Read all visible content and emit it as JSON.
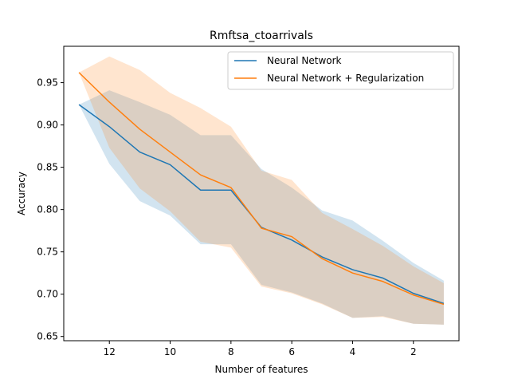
{
  "chart_data": {
    "type": "line",
    "title": "Rmftsa_ctoarrivals",
    "xlabel": "Number of features",
    "ylabel": "Accuracy",
    "x": [
      13,
      12,
      11,
      10,
      9,
      8,
      7,
      6,
      5,
      4,
      3,
      2,
      1
    ],
    "xlim": [
      13.5,
      0.5
    ],
    "ylim": [
      0.645,
      0.993
    ],
    "xticks": [
      12,
      10,
      8,
      6,
      4,
      2
    ],
    "yticks": [
      0.65,
      0.7,
      0.75,
      0.8,
      0.85,
      0.9,
      0.95
    ],
    "ytick_labels": [
      "0.65",
      "0.70",
      "0.75",
      "0.80",
      "0.85",
      "0.90",
      "0.95"
    ],
    "grid": false,
    "legend_position": "top-right",
    "series": [
      {
        "name": "Neural Network",
        "color": "#1f77b4",
        "values": [
          0.924,
          0.898,
          0.868,
          0.853,
          0.823,
          0.823,
          0.779,
          0.764,
          0.744,
          0.729,
          0.719,
          0.701,
          0.689
        ],
        "upper": [
          0.924,
          0.941,
          0.927,
          0.912,
          0.888,
          0.888,
          0.848,
          0.826,
          0.799,
          0.787,
          0.763,
          0.737,
          0.716
        ],
        "lower": [
          0.924,
          0.854,
          0.81,
          0.793,
          0.759,
          0.759,
          0.711,
          0.702,
          0.689,
          0.672,
          0.674,
          0.665,
          0.664
        ]
      },
      {
        "name": "Neural Network + Regularization",
        "color": "#ff7f0e",
        "values": [
          0.962,
          0.927,
          0.895,
          0.868,
          0.841,
          0.826,
          0.778,
          0.768,
          0.742,
          0.725,
          0.715,
          0.699,
          0.688
        ],
        "upper": [
          0.962,
          0.981,
          0.965,
          0.938,
          0.92,
          0.898,
          0.846,
          0.835,
          0.796,
          0.777,
          0.757,
          0.733,
          0.713
        ],
        "lower": [
          0.962,
          0.873,
          0.825,
          0.798,
          0.762,
          0.755,
          0.709,
          0.701,
          0.688,
          0.672,
          0.673,
          0.665,
          0.664
        ]
      }
    ]
  }
}
